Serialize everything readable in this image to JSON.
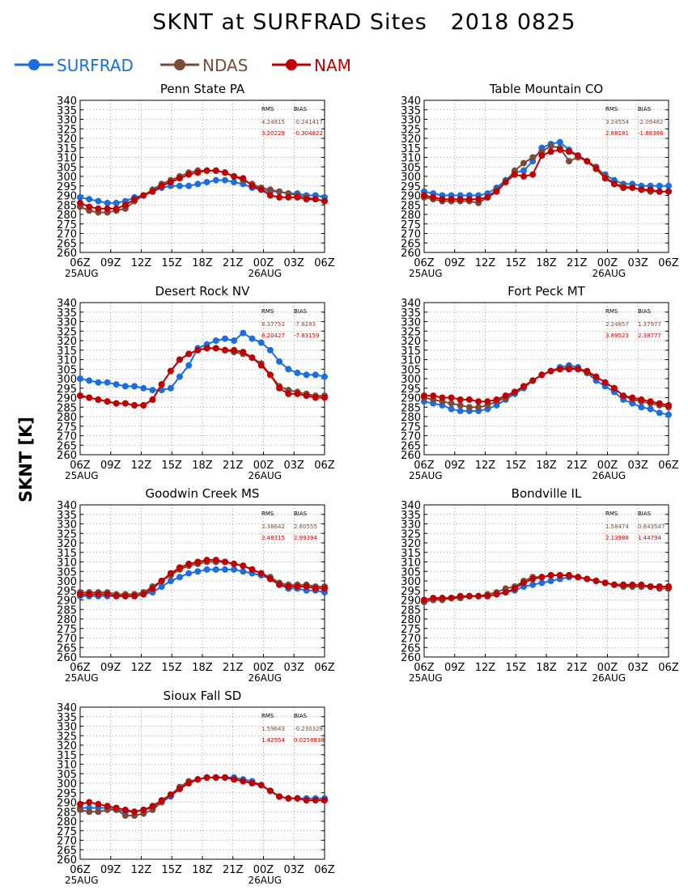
{
  "title": "SKNT at SURFRAD Sites   2018 0825",
  "y_axis_label": "SKNT [K]",
  "legend": [
    {
      "name": "SURFRAD",
      "color": "#1a6ee0",
      "icon": "line-with-dot-icon"
    },
    {
      "name": "NDAS",
      "color": "#7a4a3a",
      "icon": "line-with-dot-icon"
    },
    {
      "name": "NAM",
      "color": "#c00000",
      "icon": "line-with-dot-icon"
    }
  ],
  "stats_headers": {
    "rms": "RMS",
    "bias": "BIAS"
  },
  "chart_data": [
    {
      "type": "line",
      "title": "Penn State PA",
      "ylim": [
        260,
        340
      ],
      "xlim": [
        0,
        24
      ],
      "y_ticks": [
        "260",
        "265",
        "270",
        "275",
        "280",
        "285",
        "290",
        "295",
        "300",
        "305",
        "310",
        "315",
        "320",
        "325",
        "330",
        "335",
        "340"
      ],
      "x_ticks": [
        "06Z",
        "09Z",
        "12Z",
        "15Z",
        "18Z",
        "21Z",
        "00Z",
        "03Z",
        "06Z"
      ],
      "x_date_labels": [
        "25AUG",
        "26AUG"
      ],
      "stats": [
        {
          "series": "NDAS",
          "rms": "4.24815",
          "bias": "-0.241417"
        },
        {
          "series": "NAM",
          "rms": "3.20229",
          "bias": "-0.304822"
        }
      ],
      "series": [
        {
          "name": "SURFRAD",
          "values": [
            289,
            288,
            287,
            286,
            286,
            287,
            289,
            290,
            292,
            294,
            295,
            295,
            295,
            296,
            297,
            298,
            298,
            297,
            296,
            294,
            293,
            292,
            292,
            291,
            291,
            290,
            290,
            289
          ]
        },
        {
          "name": "NDAS",
          "values": [
            284,
            282,
            281,
            281,
            282,
            283,
            287,
            290,
            293,
            296,
            298,
            300,
            302,
            303,
            303,
            303,
            302,
            300,
            298,
            296,
            294,
            293,
            292,
            291,
            290,
            289,
            288,
            287
          ]
        },
        {
          "name": "NAM",
          "values": [
            286,
            284,
            283,
            283,
            283,
            285,
            288,
            290,
            292,
            295,
            297,
            299,
            301,
            302,
            303,
            303,
            302,
            300,
            299,
            295,
            293,
            290,
            289,
            289,
            289,
            288,
            288,
            287
          ]
        }
      ]
    },
    {
      "type": "line",
      "title": "Table Mountain CO",
      "ylim": [
        260,
        340
      ],
      "xlim": [
        0,
        24
      ],
      "y_ticks": [
        "260",
        "265",
        "270",
        "275",
        "280",
        "285",
        "290",
        "295",
        "300",
        "305",
        "310",
        "315",
        "320",
        "325",
        "330",
        "335",
        "340"
      ],
      "x_ticks": [
        "06Z",
        "09Z",
        "12Z",
        "15Z",
        "18Z",
        "21Z",
        "00Z",
        "03Z",
        "06Z"
      ],
      "x_date_labels": [
        "25AUG",
        "26AUG"
      ],
      "stats": [
        {
          "series": "NDAS",
          "rms": "3.24554",
          "bias": "-2.09482"
        },
        {
          "series": "NAM",
          "rms": "2.88181",
          "bias": "-1.88386"
        }
      ],
      "series": [
        {
          "name": "SURFRAD",
          "values": [
            292,
            291,
            290,
            290,
            290,
            290,
            290,
            291,
            294,
            298,
            302,
            303,
            308,
            315,
            317,
            318,
            314,
            311,
            308,
            304,
            301,
            298,
            296,
            296,
            295,
            295,
            295,
            295
          ]
        },
        {
          "name": "NDAS",
          "values": [
            289,
            288,
            287,
            287,
            287,
            287,
            286,
            289,
            293,
            297,
            303,
            307,
            310,
            313,
            316,
            315,
            308,
            310,
            308,
            305,
            300,
            296,
            295,
            294,
            293,
            292,
            292,
            292
          ]
        },
        {
          "name": "NAM",
          "values": [
            290,
            289,
            288,
            288,
            288,
            288,
            288,
            289,
            292,
            297,
            301,
            300,
            301,
            311,
            313,
            314,
            313,
            311,
            308,
            304,
            299,
            296,
            294,
            294,
            293,
            293,
            292,
            292
          ]
        }
      ]
    },
    {
      "type": "line",
      "title": "Desert Rock NV",
      "ylim": [
        260,
        340
      ],
      "xlim": [
        0,
        24
      ],
      "y_ticks": [
        "260",
        "265",
        "270",
        "275",
        "280",
        "285",
        "290",
        "295",
        "300",
        "305",
        "310",
        "315",
        "320",
        "325",
        "330",
        "335",
        "340"
      ],
      "x_ticks": [
        "06Z",
        "09Z",
        "12Z",
        "15Z",
        "18Z",
        "21Z",
        "00Z",
        "03Z",
        "06Z"
      ],
      "x_date_labels": [
        "25AUG",
        "26AUG"
      ],
      "stats": [
        {
          "series": "NDAS",
          "rms": "8.37753",
          "bias": "-7.8283"
        },
        {
          "series": "NAM",
          "rms": "8.20427",
          "bias": "-7.83159"
        }
      ],
      "series": [
        {
          "name": "SURFRAD",
          "values": [
            300,
            299,
            298,
            298,
            297,
            296,
            296,
            295,
            294,
            294,
            295,
            301,
            307,
            316,
            318,
            320,
            321,
            320,
            324,
            321,
            319,
            315,
            309,
            305,
            303,
            302,
            302,
            301
          ]
        },
        {
          "name": "NDAS",
          "values": [
            291,
            290,
            289,
            288,
            287,
            287,
            286,
            286,
            289,
            297,
            304,
            310,
            313,
            315,
            316,
            316,
            315,
            314,
            313,
            311,
            308,
            302,
            296,
            294,
            293,
            292,
            291,
            291
          ]
        },
        {
          "name": "NAM",
          "values": [
            291,
            290,
            289,
            288,
            287,
            287,
            286,
            286,
            289,
            297,
            304,
            310,
            313,
            315,
            316,
            316,
            315,
            315,
            314,
            311,
            307,
            302,
            295,
            292,
            292,
            291,
            290,
            290
          ]
        }
      ]
    },
    {
      "type": "line",
      "title": "Fort Peck MT",
      "ylim": [
        260,
        340
      ],
      "xlim": [
        0,
        24
      ],
      "y_ticks": [
        "260",
        "265",
        "270",
        "275",
        "280",
        "285",
        "290",
        "295",
        "300",
        "305",
        "310",
        "315",
        "320",
        "325",
        "330",
        "335",
        "340"
      ],
      "x_ticks": [
        "06Z",
        "09Z",
        "12Z",
        "15Z",
        "18Z",
        "21Z",
        "00Z",
        "03Z",
        "06Z"
      ],
      "x_date_labels": [
        "25AUG",
        "26AUG"
      ],
      "stats": [
        {
          "series": "NDAS",
          "rms": "2.24857",
          "bias": "1.37977"
        },
        {
          "series": "NAM",
          "rms": "3.89523",
          "bias": "2.38777"
        }
      ],
      "series": [
        {
          "name": "SURFRAD",
          "values": [
            288,
            287,
            286,
            284,
            283,
            283,
            283,
            284,
            286,
            289,
            292,
            295,
            299,
            302,
            304,
            306,
            307,
            306,
            303,
            299,
            296,
            293,
            289,
            287,
            285,
            284,
            282,
            281
          ]
        },
        {
          "name": "NDAS",
          "values": [
            290,
            289,
            288,
            287,
            286,
            285,
            285,
            286,
            288,
            290,
            293,
            296,
            299,
            302,
            304,
            305,
            306,
            305,
            303,
            301,
            298,
            295,
            291,
            289,
            288,
            287,
            286,
            285
          ]
        },
        {
          "name": "NAM",
          "values": [
            291,
            291,
            290,
            290,
            289,
            289,
            288,
            288,
            289,
            291,
            293,
            296,
            299,
            302,
            304,
            305,
            305,
            305,
            304,
            301,
            298,
            295,
            291,
            290,
            289,
            288,
            287,
            286
          ]
        }
      ]
    },
    {
      "type": "line",
      "title": "Goodwin Creek MS",
      "ylim": [
        260,
        340
      ],
      "xlim": [
        0,
        24
      ],
      "y_ticks": [
        "260",
        "265",
        "270",
        "275",
        "280",
        "285",
        "290",
        "295",
        "300",
        "305",
        "310",
        "315",
        "320",
        "325",
        "330",
        "335",
        "340"
      ],
      "x_ticks": [
        "06Z",
        "09Z",
        "12Z",
        "15Z",
        "18Z",
        "21Z",
        "00Z",
        "03Z",
        "06Z"
      ],
      "x_date_labels": [
        "25AUG",
        "26AUG"
      ],
      "stats": [
        {
          "series": "NDAS",
          "rms": "3.38642",
          "bias": "2.80555"
        },
        {
          "series": "NAM",
          "rms": "3.48315",
          "bias": "2.99394"
        }
      ],
      "series": [
        {
          "name": "SURFRAD",
          "values": [
            292,
            292,
            292,
            292,
            292,
            292,
            292,
            293,
            294,
            297,
            300,
            302,
            304,
            305,
            306,
            306,
            306,
            306,
            305,
            304,
            303,
            301,
            298,
            296,
            296,
            295,
            295,
            294
          ]
        },
        {
          "name": "NDAS",
          "values": [
            294,
            294,
            294,
            294,
            293,
            293,
            293,
            294,
            297,
            300,
            303,
            306,
            308,
            309,
            310,
            310,
            310,
            309,
            308,
            306,
            304,
            302,
            299,
            298,
            298,
            298,
            297,
            297
          ]
        },
        {
          "name": "NAM",
          "values": [
            293,
            293,
            293,
            293,
            292,
            292,
            292,
            293,
            296,
            300,
            304,
            307,
            309,
            310,
            311,
            311,
            310,
            309,
            308,
            306,
            304,
            301,
            298,
            297,
            297,
            297,
            296,
            296
          ]
        }
      ]
    },
    {
      "type": "line",
      "title": "Bondville IL",
      "ylim": [
        260,
        340
      ],
      "xlim": [
        0,
        24
      ],
      "y_ticks": [
        "260",
        "265",
        "270",
        "275",
        "280",
        "285",
        "290",
        "295",
        "300",
        "305",
        "310",
        "315",
        "320",
        "325",
        "330",
        "335",
        "340"
      ],
      "x_ticks": [
        "06Z",
        "09Z",
        "12Z",
        "15Z",
        "18Z",
        "21Z",
        "00Z",
        "03Z",
        "06Z"
      ],
      "x_date_labels": [
        "25AUG",
        "26AUG"
      ],
      "stats": [
        {
          "series": "NDAS",
          "rms": "1.58474",
          "bias": "0.843547"
        },
        {
          "series": "NAM",
          "rms": "2.13988",
          "bias": "1.44794"
        }
      ],
      "series": [
        {
          "name": "SURFRAD",
          "values": [
            289,
            290,
            291,
            291,
            291,
            292,
            292,
            292,
            293,
            294,
            295,
            297,
            298,
            299,
            300,
            301,
            302,
            302,
            301,
            300,
            299,
            298,
            298,
            297,
            297,
            297,
            297,
            297
          ]
        },
        {
          "name": "NDAS",
          "values": [
            289,
            290,
            290,
            291,
            291,
            292,
            292,
            293,
            294,
            296,
            297,
            300,
            302,
            302,
            303,
            303,
            303,
            302,
            301,
            300,
            299,
            298,
            297,
            297,
            297,
            297,
            296,
            296
          ]
        },
        {
          "name": "NAM",
          "values": [
            290,
            291,
            291,
            291,
            292,
            292,
            292,
            292,
            293,
            294,
            296,
            299,
            301,
            302,
            303,
            303,
            303,
            302,
            301,
            300,
            299,
            298,
            298,
            298,
            298,
            297,
            297,
            297
          ]
        }
      ]
    },
    {
      "type": "line",
      "title": "Sioux Fall SD",
      "ylim": [
        260,
        340
      ],
      "xlim": [
        0,
        24
      ],
      "y_ticks": [
        "260",
        "265",
        "270",
        "275",
        "280",
        "285",
        "290",
        "295",
        "300",
        "305",
        "310",
        "315",
        "320",
        "325",
        "330",
        "335",
        "340"
      ],
      "x_ticks": [
        "06Z",
        "09Z",
        "12Z",
        "15Z",
        "18Z",
        "21Z",
        "00Z",
        "03Z",
        "06Z"
      ],
      "x_date_labels": [
        "25AUG",
        "26AUG"
      ],
      "stats": [
        {
          "series": "NDAS",
          "rms": "1.59643",
          "bias": "-0.230328"
        },
        {
          "series": "NAM",
          "rms": "1.42954",
          "bias": "0.0258838"
        }
      ],
      "series": [
        {
          "name": "SURFRAD",
          "values": [
            287,
            287,
            287,
            287,
            286,
            285,
            285,
            286,
            287,
            290,
            293,
            297,
            300,
            302,
            303,
            303,
            303,
            303,
            302,
            301,
            299,
            296,
            293,
            292,
            292,
            292,
            292,
            292
          ]
        },
        {
          "name": "NDAS",
          "values": [
            286,
            285,
            285,
            286,
            286,
            283,
            283,
            284,
            286,
            290,
            294,
            298,
            301,
            302,
            303,
            303,
            303,
            302,
            301,
            300,
            299,
            296,
            293,
            292,
            292,
            291,
            291,
            291
          ]
        },
        {
          "name": "NAM",
          "values": [
            289,
            290,
            289,
            288,
            287,
            286,
            285,
            286,
            288,
            291,
            294,
            297,
            300,
            302,
            303,
            303,
            303,
            302,
            301,
            300,
            299,
            296,
            293,
            292,
            292,
            291,
            291,
            291
          ]
        }
      ]
    }
  ]
}
